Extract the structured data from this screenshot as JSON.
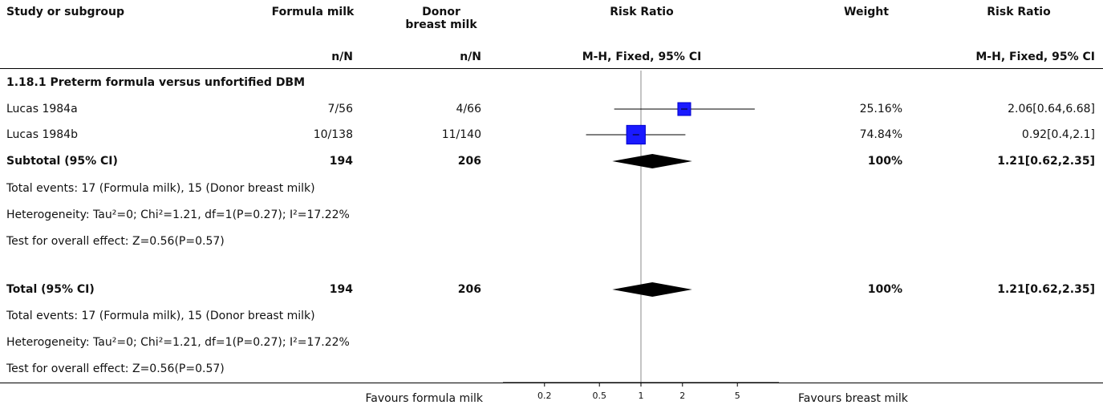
{
  "headers": {
    "study": "Study or subgroup",
    "exp": "Formula milk",
    "ctrl_line1": "Donor",
    "ctrl_line2": "breast milk",
    "rr_plot": "Risk Ratio",
    "weight": "Weight",
    "rr_text": "Risk Ratio",
    "exp_sub": "n/N",
    "ctrl_sub": "n/N",
    "rr_plot_sub": "M-H, Fixed, 95% CI",
    "rr_text_sub": "M-H, Fixed, 95% CI"
  },
  "subgroup_title": "1.18.1 Preterm formula versus unfortified DBM",
  "studies": [
    {
      "name": "Lucas 1984a",
      "exp": "7/56",
      "ctrl": "4/66",
      "weight": "25.16%",
      "ci_text": "2.06[0.64,6.68]"
    },
    {
      "name": "Lucas 1984b",
      "exp": "10/138",
      "ctrl": "11/140",
      "weight": "74.84%",
      "ci_text": "0.92[0.4,2.1]"
    }
  ],
  "subtotal": {
    "label": "Subtotal (95% CI)",
    "exp": "194",
    "ctrl": "206",
    "weight": "100%",
    "ci_text": "1.21[0.62,2.35]"
  },
  "subtotal_notes": [
    "Total events: 17 (Formula milk), 15 (Donor breast milk)",
    "Heterogeneity: Tau²=0; Chi²=1.21, df=1(P=0.27); I²=17.22%",
    "Test for overall effect: Z=0.56(P=0.57)"
  ],
  "total": {
    "label": "Total (95% CI)",
    "exp": "194",
    "ctrl": "206",
    "weight": "100%",
    "ci_text": "1.21[0.62,2.35]"
  },
  "total_notes": [
    "Total events: 17 (Formula milk), 15 (Donor breast milk)",
    "Heterogeneity: Tau²=0; Chi²=1.21, df=1(P=0.27); I²=17.22%",
    "Test for overall effect: Z=0.56(P=0.57)"
  ],
  "footer": {
    "favours_left": "Favours formula milk",
    "favours_right": "Favours breast milk"
  },
  "colors": {
    "study_marker": "#0000cc",
    "study_marker_fill": "#1a1aff",
    "diamond": "#000000",
    "axis": "#000000"
  },
  "chart_data": {
    "type": "forest",
    "scale": "log",
    "xlim": [
      0.1,
      10
    ],
    "ticks": [
      0.2,
      0.5,
      1,
      2,
      5
    ],
    "tick_labels": [
      "0.2",
      "0.5",
      "1",
      "2",
      "5"
    ],
    "null_line": 1,
    "studies": [
      {
        "name": "Lucas 1984a",
        "rr": 2.06,
        "lo": 0.64,
        "hi": 6.68,
        "weight": 25.16
      },
      {
        "name": "Lucas 1984b",
        "rr": 0.92,
        "lo": 0.4,
        "hi": 2.1,
        "weight": 74.84
      }
    ],
    "pooled": [
      {
        "name": "Subtotal (95% CI)",
        "rr": 1.21,
        "lo": 0.62,
        "hi": 2.35
      },
      {
        "name": "Total (95% CI)",
        "rr": 1.21,
        "lo": 0.62,
        "hi": 2.35
      }
    ]
  }
}
